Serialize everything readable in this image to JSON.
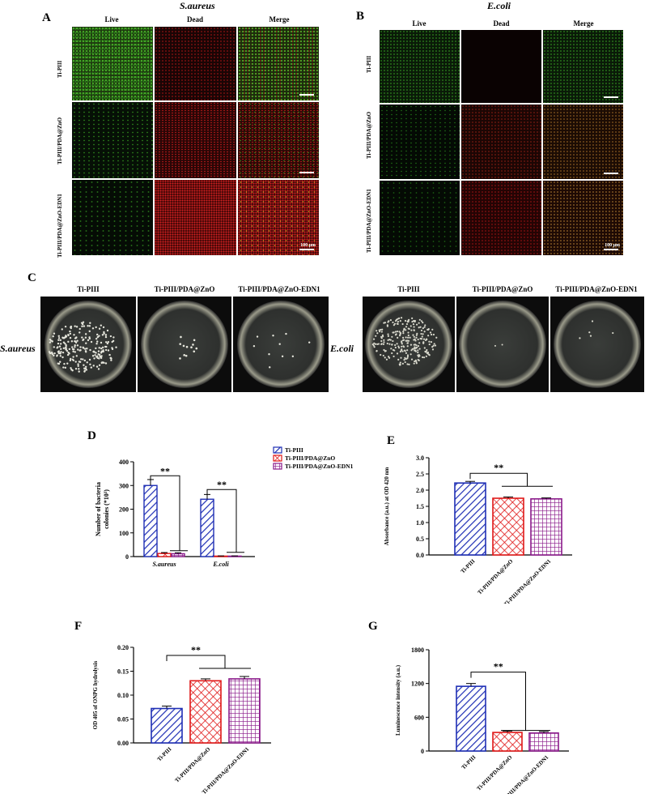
{
  "panels": {
    "A": {
      "label": "A",
      "title": "S.aureus",
      "columns": [
        "Live",
        "Dead",
        "Merge"
      ],
      "rows": [
        "Ti-PIII",
        "Ti-PIII/PDA@ZnO",
        "Ti-PIII/PDA@ZnO-EDN1"
      ],
      "scale": "100 μm"
    },
    "B": {
      "label": "B",
      "title": "E.coli",
      "columns": [
        "Live",
        "Dead",
        "Merge"
      ],
      "rows": [
        "Ti-PIII",
        "Ti-PIII/PDA@ZnO",
        "Ti-PIII/PDA@ZnO-EDN1"
      ],
      "scale": "100 μm"
    },
    "C": {
      "label": "C",
      "columns": [
        "Ti-PIII",
        "Ti-PIII/PDA@ZnO",
        "Ti-PIII/PDA@ZnO-EDN1"
      ],
      "left": "S.aureus",
      "right": "E.coli"
    },
    "D": {
      "label": "D"
    },
    "E": {
      "label": "E"
    },
    "F": {
      "label": "F"
    },
    "G": {
      "label": "G"
    }
  },
  "colors": {
    "blue": "#1f2fb5",
    "red": "#e01818",
    "purple": "#8a1a8a"
  },
  "chart_data": [
    {
      "panel": "D",
      "type": "bar",
      "categories": [
        "S.aureus",
        "E.coli"
      ],
      "ylabel": "Number of bacteria colonies (*10³)",
      "ylim": [
        0,
        400
      ],
      "yticks": [
        0,
        100,
        200,
        300,
        400
      ],
      "series": [
        {
          "name": "Ti-PIII",
          "values": [
            300,
            242
          ],
          "errors": [
            25,
            20
          ]
        },
        {
          "name": "Ti-PIII/PDA@ZnO",
          "values": [
            13,
            2
          ],
          "errors": [
            4,
            1
          ]
        },
        {
          "name": "Ti-PIII/PDA@ZnO-EDN1",
          "values": [
            12,
            2
          ],
          "errors": [
            4,
            1
          ]
        }
      ],
      "significance": "**",
      "legend": "top-right"
    },
    {
      "panel": "E",
      "type": "bar",
      "categories": [
        "Ti-PIII",
        "Ti-PIII/PDA@ZnO",
        "Ti-PIII/PDA@ZnO-EDN1"
      ],
      "ylabel": "Absorbance (a.u.) at OD 420 nm",
      "ylim": [
        0,
        3.0
      ],
      "yticks": [
        "0.0",
        "0.5",
        "1.0",
        "1.5",
        "2.0",
        "2.5",
        "3.0"
      ],
      "values": [
        2.22,
        1.75,
        1.73
      ],
      "errors": [
        0.05,
        0.04,
        0.03
      ],
      "significance": "**"
    },
    {
      "panel": "F",
      "type": "bar",
      "categories": [
        "Ti-PIII",
        "Ti-PIII/PDA@ZnO",
        "Ti-PIII/PDA@ZnO-EDN1"
      ],
      "ylabel": "OD 405 of ONPG hydrolysis",
      "ylim": [
        0,
        0.2
      ],
      "yticks": [
        "0.00",
        "0.05",
        "0.10",
        "0.15",
        "0.20"
      ],
      "values": [
        0.072,
        0.13,
        0.134
      ],
      "errors": [
        0.005,
        0.004,
        0.005
      ],
      "significance": "**"
    },
    {
      "panel": "G",
      "type": "bar",
      "categories": [
        "Ti-PIII",
        "Ti-PIII/PDA@ZnO",
        "Ti-PIII/PDA@ZnO-EDN1"
      ],
      "ylabel": "Luminescence intensity (a.u.)",
      "ylim": [
        0,
        1800
      ],
      "yticks": [
        "0",
        "600",
        "1200",
        "1800"
      ],
      "values": [
        1150,
        330,
        320
      ],
      "errors": [
        50,
        25,
        25
      ],
      "significance": "**"
    }
  ]
}
